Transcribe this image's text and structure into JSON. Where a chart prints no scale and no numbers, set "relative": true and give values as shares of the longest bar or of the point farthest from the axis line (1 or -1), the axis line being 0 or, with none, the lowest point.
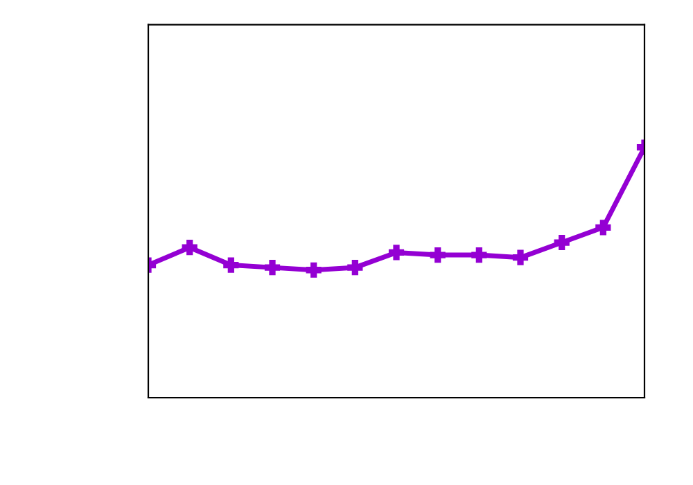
{
  "chart_data": {
    "type": "line",
    "relative": true,
    "categories": [
      null,
      null,
      null,
      null,
      null,
      null,
      null,
      null,
      null,
      null,
      null,
      null,
      null
    ],
    "series": [
      {
        "color": "#9400d3",
        "values": [
          0.53,
          0.6,
          0.53,
          0.52,
          0.51,
          0.52,
          0.58,
          0.57,
          0.57,
          0.56,
          0.62,
          0.68,
          1
        ]
      }
    ],
    "marker": "cross",
    "line_style": "solid"
  }
}
